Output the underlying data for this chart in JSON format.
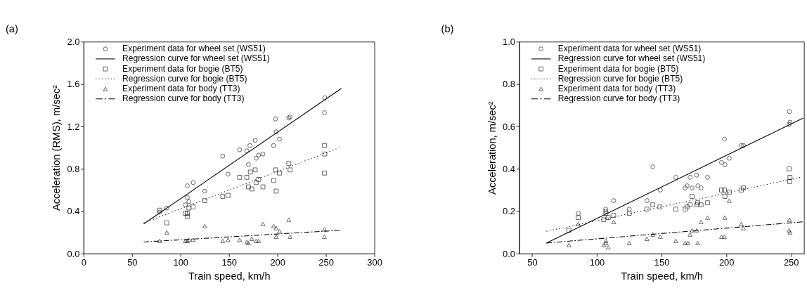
{
  "chart_data": [
    {
      "type": "scatter",
      "title": "(a)",
      "xlabel": "Train speed, km/h",
      "ylabel": "Acceleration (RMS), m/sec²",
      "xlim": [
        0,
        300
      ],
      "ylim": [
        0,
        2.0
      ],
      "xticks": [
        0,
        50,
        100,
        150,
        200,
        250,
        300
      ],
      "yticks": [
        {
          "value": 0,
          "label": "0.0"
        },
        0.4,
        0.8,
        1.2,
        1.6,
        {
          "value": 2.0,
          "label": "2.0"
        }
      ],
      "grid": false,
      "legend": "top left",
      "series": [
        {
          "name": "Experiment data for wheel set (WS51)",
          "marker": "circle",
          "color": "#000000",
          "x": [
            78.5,
            85.8,
            107,
            113,
            107,
            108.6,
            105,
            125,
            143.5,
            149,
            161,
            168.4,
            171.5,
            177,
            170,
            178,
            180.6,
            185,
            196,
            198,
            198.7,
            202,
            211.7,
            213,
            248.8,
            248.4
          ],
          "values": [
            0.39,
            0.43,
            0.64,
            0.67,
            0.53,
            0.49,
            0.46,
            0.59,
            0.92,
            0.75,
            0.98,
            0.97,
            1.02,
            1.07,
            0.84,
            0.9,
            0.93,
            0.94,
            1.02,
            1.27,
            1.15,
            1.08,
            1.28,
            1.29,
            1.47,
            1.33
          ]
        },
        {
          "name": "Regression curve for wheel set (WS51)",
          "type": "line",
          "line_style": "solid",
          "color": "#000000",
          "x": [
            62,
            266
          ],
          "values": [
            0.28,
            1.56
          ]
        },
        {
          "name": "Experiment data for bogie (BT5)",
          "marker": "square",
          "color": "#000000",
          "x": [
            78.5,
            85.8,
            105,
            107,
            107,
            108.6,
            113,
            125,
            143.5,
            149,
            161,
            168.4,
            170,
            172,
            173.5,
            177,
            178,
            180.6,
            185,
            196,
            198,
            198.7,
            202,
            211.7,
            213,
            248.4,
            248.8,
            248.4
          ],
          "values": [
            0.41,
            0.29,
            0.38,
            0.38,
            0.35,
            0.43,
            0.44,
            0.5,
            0.54,
            0.55,
            0.72,
            0.72,
            0.63,
            0.77,
            0.61,
            0.79,
            0.67,
            0.7,
            0.63,
            0.69,
            0.79,
            0.59,
            0.76,
            0.85,
            0.79,
            1.02,
            0.94,
            0.76
          ]
        },
        {
          "name": "Regression curve for bogie (BT5)",
          "type": "line",
          "line_style": "dotted",
          "color": "#000000",
          "x": [
            62,
            264
          ],
          "values": [
            0.29,
            1.0
          ]
        },
        {
          "name": "Experiment data for body (TT3)",
          "marker": "triangle",
          "color": "#000000",
          "x": [
            78.5,
            85.8,
            105,
            107,
            108.6,
            113,
            125,
            143.5,
            149,
            161,
            168.4,
            170,
            173.5,
            178,
            180.6,
            185,
            196,
            198.7,
            202,
            198.7,
            211.7,
            213,
            248.4,
            248.4
          ],
          "values": [
            0.12,
            0.2,
            0.12,
            0.12,
            0.13,
            0.13,
            0.26,
            0.12,
            0.13,
            0.13,
            0.11,
            0.1,
            0.14,
            0.12,
            0.12,
            0.28,
            0.26,
            0.24,
            0.21,
            0.16,
            0.32,
            0.16,
            0.23,
            0.16
          ]
        },
        {
          "name": "Regression curve for body (TT3)",
          "type": "line",
          "line_style": "dashed",
          "color": "#000000",
          "x": [
            62,
            264
          ],
          "values": [
            0.11,
            0.22
          ]
        }
      ]
    },
    {
      "type": "scatter",
      "title": "(b)",
      "xlabel": "Train speed, km/h",
      "ylabel": "Acceleration, m/sec²",
      "xlim": [
        40,
        260
      ],
      "ylim": [
        0,
        1.0
      ],
      "xticks": [
        50,
        100,
        150,
        200,
        250
      ],
      "yticks": [
        {
          "value": 0,
          "label": "0.0"
        },
        0.2,
        0.4,
        0.6,
        0.8,
        {
          "value": 1.0,
          "label": "1.0"
        }
      ],
      "grid": false,
      "legend": "top left",
      "series": [
        {
          "name": "Experiment data for wheel set (WS51)",
          "marker": "circle",
          "color": "#000000",
          "x": [
            85.6,
            106.8,
            106.8,
            113,
            125,
            138.7,
            143.2,
            149,
            161,
            168.2,
            169.7,
            172,
            173.6,
            177,
            178,
            180.5,
            185.5,
            196.3,
            198.6,
            199,
            202.3,
            211.6,
            213.2,
            248.8,
            249.2,
            248.5
          ],
          "values": [
            0.19,
            0.21,
            0.2,
            0.25,
            0.21,
            0.25,
            0.41,
            0.3,
            0.36,
            0.31,
            0.32,
            0.36,
            0.31,
            0.37,
            0.32,
            0.31,
            0.36,
            0.43,
            0.54,
            0.42,
            0.45,
            0.51,
            0.51,
            0.67,
            0.62,
            0.61
          ]
        },
        {
          "name": "Regression curve for wheel set (WS51)",
          "type": "line",
          "line_style": "solid",
          "color": "#000000",
          "x": [
            61,
            259.5
          ],
          "values": [
            0.05,
            0.64
          ]
        },
        {
          "name": "Experiment data for bogie (BT5)",
          "marker": "square",
          "color": "#000000",
          "x": [
            78.4,
            85.6,
            105.3,
            107,
            108.8,
            113,
            125,
            138.7,
            143.2,
            148.7,
            161,
            168.2,
            169.7,
            172,
            173.6,
            177.1,
            177.9,
            180.5,
            185.5,
            196.3,
            198.6,
            198.9,
            202.3,
            211.6,
            213.2,
            248.5,
            249.2,
            248.9
          ],
          "values": [
            0.11,
            0.17,
            0.16,
            0.19,
            0.17,
            0.18,
            0.19,
            0.21,
            0.23,
            0.22,
            0.21,
            0.21,
            0.22,
            0.23,
            0.27,
            0.23,
            0.24,
            0.23,
            0.24,
            0.3,
            0.3,
            0.27,
            0.29,
            0.3,
            0.31,
            0.4,
            0.36,
            0.34
          ]
        },
        {
          "name": "Regression curve for bogie (BT5)",
          "type": "line",
          "line_style": "dotted",
          "color": "#000000",
          "x": [
            61,
            257
          ],
          "values": [
            0.105,
            0.36
          ]
        },
        {
          "name": "Experiment data for body (TT3)",
          "marker": "triangle",
          "color": "#000000",
          "x": [
            78.4,
            85.6,
            105.3,
            107,
            107,
            108.8,
            113,
            125,
            138.7,
            143.2,
            149,
            161,
            168.2,
            170.2,
            172,
            173.6,
            177.1,
            177.9,
            180.5,
            185.5,
            196.3,
            198.6,
            198.9,
            202.3,
            211.6,
            213.2,
            248.8,
            248.5,
            249.2
          ],
          "values": [
            0.04,
            0.14,
            0.04,
            0.06,
            0.05,
            0.03,
            0.15,
            0.05,
            0.07,
            0.09,
            0.08,
            0.06,
            0.05,
            0.05,
            0.09,
            0.11,
            0.11,
            0.05,
            0.15,
            0.17,
            0.08,
            0.08,
            0.17,
            0.25,
            0.14,
            0.12,
            0.16,
            0.11,
            0.1
          ]
        },
        {
          "name": "Regression curve for body (TT3)",
          "type": "line",
          "line_style": "dashed",
          "color": "#000000",
          "x": [
            61,
            259
          ],
          "values": [
            0.05,
            0.15
          ]
        }
      ]
    }
  ]
}
